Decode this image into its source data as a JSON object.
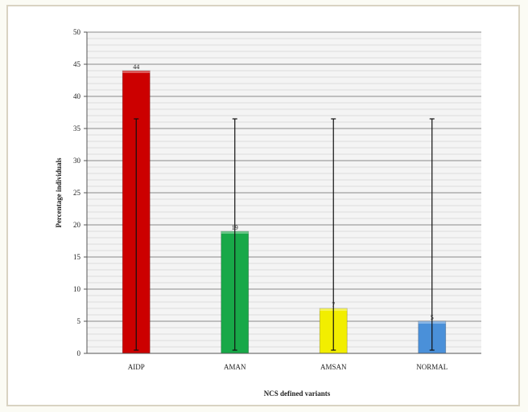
{
  "chart_data": {
    "type": "bar",
    "title": "",
    "xlabel": "NCS defined variants",
    "ylabel": "Percentage individuals",
    "categories": [
      "AIDP",
      "AMAN",
      "AMSAN",
      "NORMAL"
    ],
    "values": [
      44,
      19,
      7,
      5
    ],
    "data_labels": [
      "44",
      "19",
      "7",
      "5"
    ],
    "error_bars": [
      {
        "low": 0.5,
        "high": 36.5
      },
      {
        "low": 0.5,
        "high": 36.5
      },
      {
        "low": 0.5,
        "high": 36.5
      },
      {
        "low": 0.5,
        "high": 36.5
      }
    ],
    "colors": [
      "#cc0000",
      "#18a848",
      "#f2ee00",
      "#4a90d9"
    ],
    "ylim": [
      0,
      50
    ],
    "yticks": [
      "0",
      "5",
      "10",
      "15",
      "20",
      "25",
      "30",
      "35",
      "40",
      "45",
      "50"
    ],
    "grid": true,
    "legend": "none"
  }
}
